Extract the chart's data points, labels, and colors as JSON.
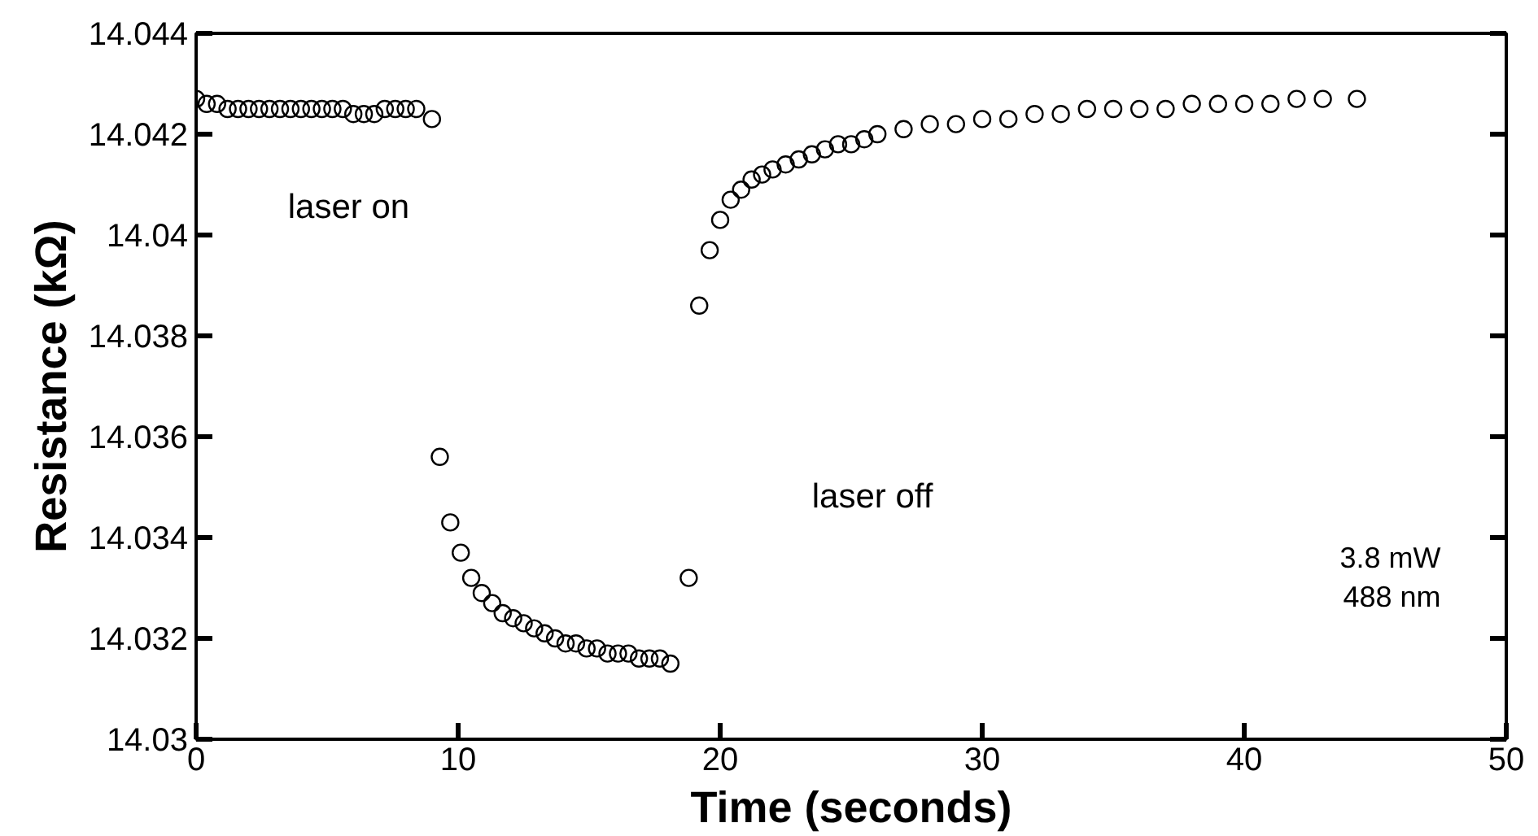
{
  "chart_data": {
    "type": "scatter",
    "xlabel": "Time (seconds)",
    "ylabel": "Resistance (kΩ)",
    "xlim": [
      0,
      50
    ],
    "ylim": [
      14.03,
      14.044
    ],
    "xticks": [
      0,
      10,
      20,
      30,
      40,
      50
    ],
    "yticks": [
      14.03,
      14.032,
      14.034,
      14.036,
      14.038,
      14.04,
      14.042,
      14.044
    ],
    "marker": "circle",
    "grid": false,
    "annotations": [
      "laser on",
      "laser off",
      "3.8 mW\n488 nm"
    ],
    "series": [
      {
        "color": "#000000",
        "x": [
          0,
          0.4,
          0.8,
          1.2,
          1.6,
          2.0,
          2.4,
          2.8,
          3.2,
          3.6,
          4.0,
          4.4,
          4.8,
          5.2,
          5.6,
          6.0,
          6.4,
          6.8,
          7.2,
          7.6,
          8.0,
          8.4,
          9.0,
          9.3,
          9.7,
          10.1,
          10.5,
          10.9,
          11.3,
          11.7,
          12.1,
          12.5,
          12.9,
          13.3,
          13.7,
          14.1,
          14.5,
          14.9,
          15.3,
          15.7,
          16.1,
          16.5,
          16.9,
          17.3,
          17.7,
          18.1,
          18.8,
          19.2,
          19.6,
          20.0,
          20.4,
          20.8,
          21.2,
          21.6,
          22.0,
          22.5,
          23.0,
          23.5,
          24.0,
          24.5,
          25.0,
          25.5,
          26.0,
          27.0,
          28.0,
          29.0,
          30.0,
          31.0,
          32.0,
          33.0,
          34.0,
          35.0,
          36.0,
          37.0,
          38.0,
          39.0,
          40.0,
          41.0,
          42.0,
          43.0,
          44.3
        ],
        "values": [
          14.0427,
          14.0426,
          14.0426,
          14.0425,
          14.0425,
          14.0425,
          14.0425,
          14.0425,
          14.0425,
          14.0425,
          14.0425,
          14.0425,
          14.0425,
          14.0425,
          14.0425,
          14.0424,
          14.0424,
          14.0424,
          14.0425,
          14.0425,
          14.0425,
          14.0425,
          14.0423,
          14.0356,
          14.0343,
          14.0337,
          14.0332,
          14.0329,
          14.0327,
          14.0325,
          14.0324,
          14.0323,
          14.0322,
          14.0321,
          14.032,
          14.0319,
          14.0319,
          14.0318,
          14.0318,
          14.0317,
          14.0317,
          14.0317,
          14.0316,
          14.0316,
          14.0316,
          14.0315,
          14.0332,
          14.0386,
          14.0397,
          14.0403,
          14.0407,
          14.0409,
          14.0411,
          14.0412,
          14.0413,
          14.0414,
          14.0415,
          14.0416,
          14.0417,
          14.0418,
          14.0418,
          14.0419,
          14.042,
          14.0421,
          14.0422,
          14.0422,
          14.0423,
          14.0423,
          14.0424,
          14.0424,
          14.0425,
          14.0425,
          14.0425,
          14.0425,
          14.0426,
          14.0426,
          14.0426,
          14.0426,
          14.0427,
          14.0427,
          14.0427
        ]
      }
    ]
  }
}
